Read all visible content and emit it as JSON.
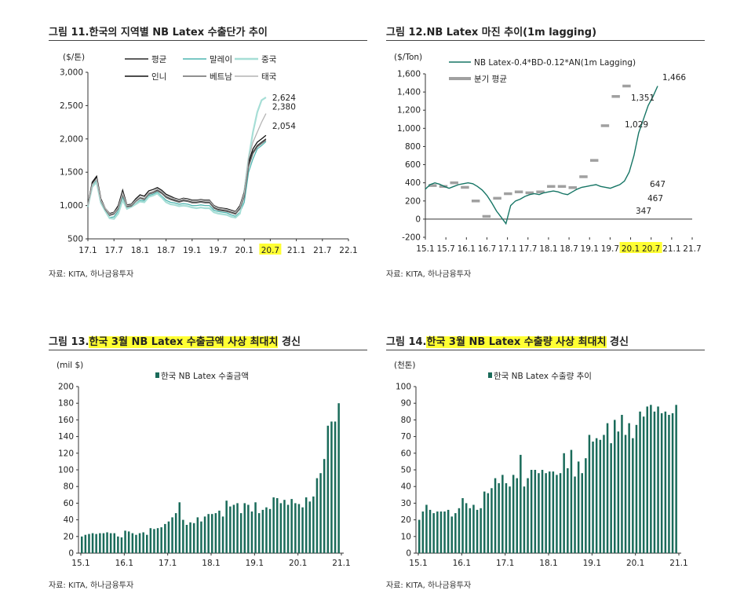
{
  "colors": {
    "highlight": "#ffff33",
    "bar": "#1a6b5a",
    "avg": "#2a2a2a",
    "malaysia": "#4fb5b0",
    "china": "#a6ded6",
    "indo": "#111111",
    "vietnam": "#6c6c6c",
    "thai": "#b4b4b4",
    "margin": "#167565",
    "quarter": "#a0a0a0"
  },
  "source": "자료: KITA, 하나금융투자",
  "chart_data": [
    {
      "type": "line",
      "title_prefix": "그림 11.",
      "title_main": "한국의 지역별 NB Latex 수출단가 추이",
      "unit": "($/톤)",
      "ylim": [
        500,
        3000
      ],
      "yticks": [
        "500",
        "1,000",
        "1,500",
        "2,000",
        "2,500",
        "3,000"
      ],
      "xticks": [
        "17.1",
        "17.7",
        "18.1",
        "18.7",
        "19.1",
        "19.7",
        "20.1",
        "20.7",
        "21.1",
        "21.7",
        "22.1"
      ],
      "highlight_tick": "20.7",
      "x_start": "2017-01",
      "x_end": "2022-01",
      "series": [
        {
          "name": "평균",
          "color_key": "avg",
          "values": [
            1000,
            1330,
            1420,
            1080,
            950,
            860,
            880,
            960,
            1180,
            990,
            1000,
            1070,
            1120,
            1100,
            1180,
            1200,
            1230,
            1190,
            1130,
            1100,
            1080,
            1060,
            1080,
            1070,
            1050,
            1050,
            1060,
            1050,
            1050,
            970,
            940,
            930,
            920,
            900,
            880,
            960,
            1150,
            1600,
            1800,
            1900,
            1950,
            2000
          ]
        },
        {
          "name": "말레이",
          "color_key": "malaysia",
          "values": [
            980,
            1300,
            1380,
            1050,
            930,
            820,
            830,
            920,
            1120,
            960,
            980,
            1030,
            1080,
            1070,
            1150,
            1170,
            1200,
            1140,
            1080,
            1050,
            1040,
            1020,
            1030,
            1020,
            1000,
            1000,
            1010,
            1000,
            1000,
            930,
            910,
            900,
            890,
            860,
            840,
            900,
            1050,
            1500,
            1700,
            1850,
            1900,
            1960
          ]
        },
        {
          "name": "중국",
          "color_key": "china",
          "values": [
            990,
            1280,
            1350,
            1040,
            920,
            810,
            800,
            880,
            1080,
            950,
            980,
            1020,
            1060,
            1050,
            1130,
            1150,
            1180,
            1120,
            1050,
            1020,
            1010,
            990,
            1000,
            990,
            970,
            960,
            970,
            960,
            960,
            900,
            880,
            870,
            860,
            830,
            820,
            880,
            1200,
            1700,
            2100,
            2400,
            2580,
            2624
          ]
        },
        {
          "name": "인니",
          "color_key": "indo",
          "values": [
            1010,
            1350,
            1440,
            1100,
            960,
            880,
            900,
            1000,
            1230,
            1010,
            1020,
            1100,
            1160,
            1140,
            1220,
            1240,
            1270,
            1230,
            1170,
            1140,
            1110,
            1090,
            1110,
            1100,
            1080,
            1080,
            1090,
            1080,
            1080,
            1000,
            970,
            960,
            950,
            930,
            910,
            1000,
            1200,
            1650,
            1850,
            1950,
            2000,
            2054
          ]
        },
        {
          "name": "베트남",
          "color_key": "vietnam",
          "values": [
            1000,
            1320,
            1400,
            1070,
            940,
            850,
            870,
            950,
            1160,
            980,
            990,
            1060,
            1110,
            1090,
            1170,
            1190,
            1220,
            1180,
            1120,
            1090,
            1070,
            1050,
            1070,
            1060,
            1040,
            1040,
            1050,
            1040,
            1040,
            960,
            930,
            920,
            910,
            890,
            870,
            950,
            1130,
            1580,
            1780,
            1880,
            1930,
            1980
          ]
        },
        {
          "name": "태국",
          "color_key": "thai",
          "values": [
            1000,
            1310,
            1400,
            1080,
            960,
            870,
            890,
            970,
            1190,
            1000,
            1010,
            1080,
            1130,
            1110,
            1190,
            1210,
            1250,
            1210,
            1150,
            1120,
            1100,
            1080,
            1100,
            1090,
            1070,
            1070,
            1080,
            1070,
            1070,
            990,
            960,
            950,
            940,
            920,
            900,
            980,
            1180,
            1700,
            1950,
            2100,
            2250,
            2380
          ]
        }
      ],
      "end_labels": [
        "2,624",
        "2,380",
        "2,054"
      ]
    },
    {
      "type": "line",
      "title_prefix": "그림 12.",
      "title_main": "NB Latex 마진 추이(1m lagging)",
      "unit": "($/Ton)",
      "ylim": [
        -200,
        1600
      ],
      "yticks": [
        "-200",
        "0",
        "200",
        "400",
        "600",
        "800",
        "1,000",
        "1,200",
        "1,400",
        "1,600"
      ],
      "xticks": [
        "15.1",
        "15.7",
        "16.1",
        "16.7",
        "17.1",
        "17.7",
        "18.1",
        "18.7",
        "19.1",
        "19.7",
        "20.1",
        "20.7",
        "21.1",
        "21.7"
      ],
      "highlight_ticks": [
        "20.1",
        "20.7"
      ],
      "x_start": "2015-01",
      "x_end": "2021-07",
      "series": [
        {
          "name": "NB Latex-0.4*BD-0.12*AN(1m Lagging)",
          "color_key": "margin",
          "values": [
            330,
            380,
            400,
            385,
            360,
            340,
            360,
            380,
            390,
            400,
            390,
            360,
            320,
            260,
            180,
            90,
            20,
            -50,
            150,
            200,
            220,
            250,
            270,
            280,
            270,
            290,
            300,
            310,
            300,
            280,
            270,
            300,
            330,
            350,
            360,
            370,
            380,
            360,
            350,
            340,
            360,
            380,
            420,
            520,
            700,
            950,
            1100,
            1250,
            1350,
            1466
          ]
        },
        {
          "name": "분기 평균",
          "color_key": "quarter",
          "values": [
            370,
            360,
            400,
            350,
            200,
            30,
            230,
            280,
            300,
            290,
            300,
            360,
            360,
            347,
            467,
            647,
            1029,
            1351,
            1466
          ]
        }
      ],
      "point_labels": [
        "1,466",
        "1,351",
        "1,029",
        "647",
        "467",
        "347"
      ]
    },
    {
      "type": "bar",
      "title_prefix": "그림 13.",
      "title_main": "한국 3월 NB Latex 수출금액 사상 최대치",
      "title_suffix": " 경신",
      "unit": "(mil $)",
      "legend": "한국 NB Latex 수출금액",
      "ylim": [
        0,
        200
      ],
      "yticks": [
        "0",
        "20",
        "40",
        "60",
        "80",
        "100",
        "120",
        "140",
        "160",
        "180",
        "200"
      ],
      "xticks": [
        "15.1",
        "16.1",
        "17.1",
        "18.1",
        "19.1",
        "20.1",
        "21.1"
      ],
      "x_start": "2015-01",
      "x_end": "2021-03",
      "values": [
        20,
        22,
        23,
        24,
        23,
        24,
        24,
        25,
        24,
        24,
        20,
        19,
        27,
        26,
        24,
        22,
        24,
        25,
        22,
        30,
        29,
        30,
        31,
        35,
        38,
        43,
        48,
        61,
        40,
        34,
        37,
        36,
        43,
        38,
        44,
        47,
        47,
        48,
        51,
        44,
        63,
        56,
        58,
        60,
        48,
        60,
        58,
        50,
        61,
        48,
        52,
        55,
        53,
        67,
        66,
        60,
        64,
        58,
        65,
        60,
        59,
        55,
        67,
        62,
        68,
        90,
        96,
        113,
        153,
        158,
        158,
        180
      ]
    },
    {
      "type": "bar",
      "title_prefix": "그림 14.",
      "title_main": "한국 3월 NB Latex 수출량 사상 최대치",
      "title_suffix": " 경신",
      "unit": "(천톤)",
      "legend": "한국 NB Latex 수출량 추이",
      "ylim": [
        0,
        100
      ],
      "yticks": [
        "0",
        "10",
        "20",
        "30",
        "40",
        "50",
        "60",
        "70",
        "80",
        "90",
        "100"
      ],
      "xticks": [
        "15.1",
        "16.1",
        "17.1",
        "18.1",
        "19.1",
        "20.1",
        "21.1"
      ],
      "x_start": "2015-01",
      "x_end": "2021-03",
      "values": [
        20,
        25,
        29,
        26,
        24,
        25,
        25,
        25,
        26,
        22,
        24,
        27,
        33,
        30,
        27,
        29,
        26,
        27,
        37,
        36,
        39,
        45,
        42,
        47,
        42,
        40,
        47,
        45,
        59,
        40,
        45,
        50,
        50,
        48,
        50,
        48,
        49,
        49,
        47,
        48,
        60,
        51,
        62,
        46,
        55,
        48,
        57,
        71,
        67,
        69,
        68,
        71,
        78,
        66,
        80,
        73,
        83,
        71,
        78,
        69,
        77,
        85,
        82,
        88,
        89,
        85,
        88,
        84,
        85,
        83,
        84,
        89
      ]
    }
  ]
}
